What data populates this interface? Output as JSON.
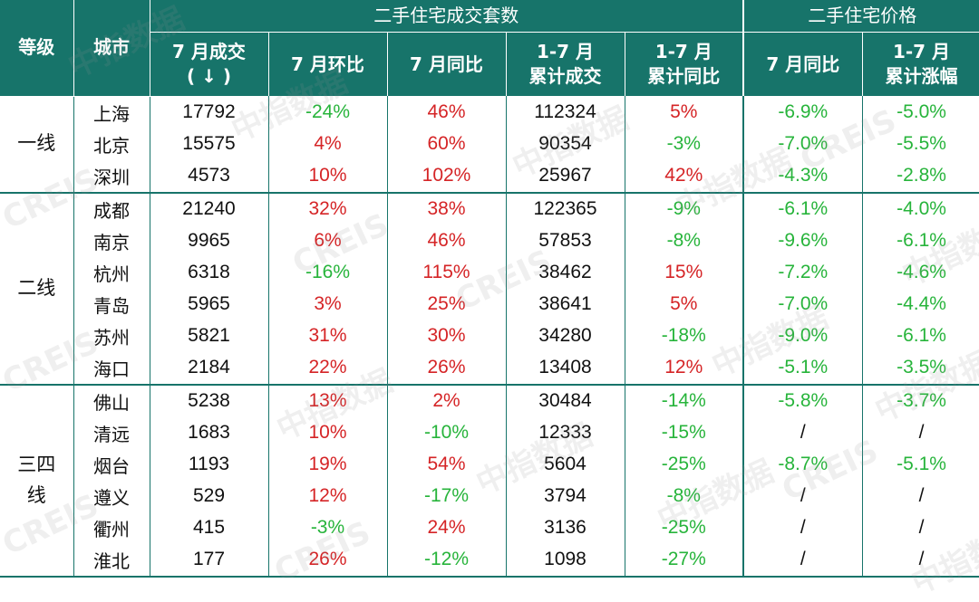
{
  "header": {
    "tier": "等级",
    "city": "城市",
    "group_volume": "二手住宅成交套数",
    "group_price": "二手住宅价格",
    "cols": [
      {
        "line1": "7 月成交",
        "line2": "( ↓ )"
      },
      {
        "line1": "7 月环比",
        "line2": ""
      },
      {
        "line1": "7 月同比",
        "line2": ""
      },
      {
        "line1": "1-7 月",
        "line2": "累计成交"
      },
      {
        "line1": "1-7 月",
        "line2": "累计同比"
      },
      {
        "line1": "7 月同比",
        "line2": ""
      },
      {
        "line1": "1-7 月",
        "line2": "累计涨幅"
      }
    ]
  },
  "tiers": [
    {
      "label": "一线",
      "rows": [
        [
          "上海",
          "17792",
          "-24%",
          "46%",
          "112324",
          "5%",
          "-6.9%",
          "-5.0%"
        ],
        [
          "北京",
          "15575",
          "4%",
          "60%",
          "90354",
          "-3%",
          "-7.0%",
          "-5.5%"
        ],
        [
          "深圳",
          "4573",
          "10%",
          "102%",
          "25967",
          "42%",
          "-4.3%",
          "-2.8%"
        ]
      ]
    },
    {
      "label": "二线",
      "rows": [
        [
          "成都",
          "21240",
          "32%",
          "38%",
          "122365",
          "-9%",
          "-6.1%",
          "-4.0%"
        ],
        [
          "南京",
          "9965",
          "6%",
          "46%",
          "57853",
          "-8%",
          "-9.6%",
          "-6.1%"
        ],
        [
          "杭州",
          "6318",
          "-16%",
          "115%",
          "38462",
          "15%",
          "-7.2%",
          "-4.6%"
        ],
        [
          "青岛",
          "5965",
          "3%",
          "25%",
          "38641",
          "5%",
          "-7.0%",
          "-4.4%"
        ],
        [
          "苏州",
          "5821",
          "31%",
          "30%",
          "34280",
          "-18%",
          "-9.0%",
          "-6.1%"
        ],
        [
          "海口",
          "2184",
          "22%",
          "26%",
          "13408",
          "12%",
          "-5.1%",
          "-3.5%"
        ]
      ]
    },
    {
      "label": "三四线",
      "rows": [
        [
          "佛山",
          "5238",
          "13%",
          "2%",
          "30484",
          "-14%",
          "-5.8%",
          "-3.7%"
        ],
        [
          "清远",
          "1683",
          "10%",
          "-10%",
          "12333",
          "-15%",
          "/",
          "/"
        ],
        [
          "烟台",
          "1193",
          "19%",
          "54%",
          "5604",
          "-25%",
          "-8.7%",
          "-5.1%"
        ],
        [
          "遵义",
          "529",
          "12%",
          "-17%",
          "3794",
          "-8%",
          "/",
          "/"
        ],
        [
          "衢州",
          "415",
          "-3%",
          "24%",
          "3136",
          "-25%",
          "/",
          "/"
        ],
        [
          "淮北",
          "177",
          "26%",
          "-12%",
          "1098",
          "-27%",
          "/",
          "/"
        ]
      ]
    }
  ],
  "watermark": {
    "cn": "中指数据",
    "en": "CREIS"
  },
  "colors": {
    "header_bg": "#17746a",
    "positive": "#d52426",
    "negative": "#27b43b"
  }
}
